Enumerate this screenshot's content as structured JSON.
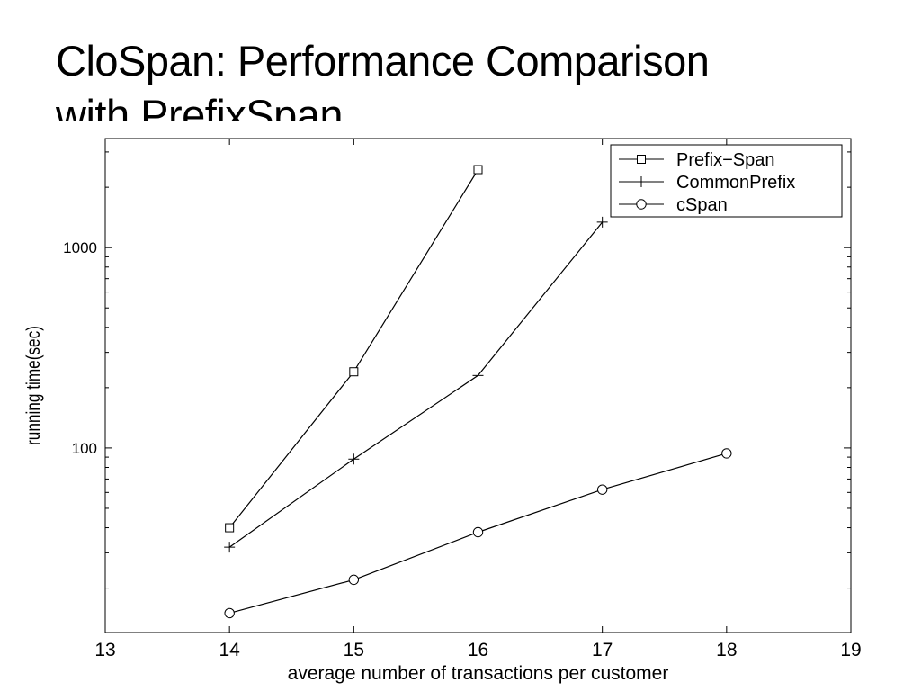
{
  "slide": {
    "title_line1": "CloSpan: Performance Comparison",
    "title_line2": "with PrefixSpan"
  },
  "chart_data": {
    "type": "line",
    "title": "",
    "xlabel": "average number of transactions per customer",
    "ylabel": "running time(sec)",
    "xlim": [
      13,
      19
    ],
    "ylim": [
      12,
      3500
    ],
    "y_scale": "log",
    "grid": false,
    "legend_position": "top-right",
    "x_ticks": [
      13,
      14,
      15,
      16,
      17,
      18,
      19
    ],
    "y_ticks": [
      100,
      1000
    ],
    "series": [
      {
        "name": "Prefix−Span",
        "marker": "square",
        "x": [
          14,
          15,
          16
        ],
        "y": [
          40,
          240,
          2450
        ]
      },
      {
        "name": "CommonPrefix",
        "marker": "plus",
        "x": [
          14,
          15,
          16,
          17
        ],
        "y": [
          32,
          88,
          230,
          1340
        ]
      },
      {
        "name": "cSpan",
        "marker": "circle",
        "x": [
          14,
          15,
          16,
          17,
          18
        ],
        "y": [
          15,
          22,
          38,
          62,
          94
        ]
      }
    ]
  }
}
